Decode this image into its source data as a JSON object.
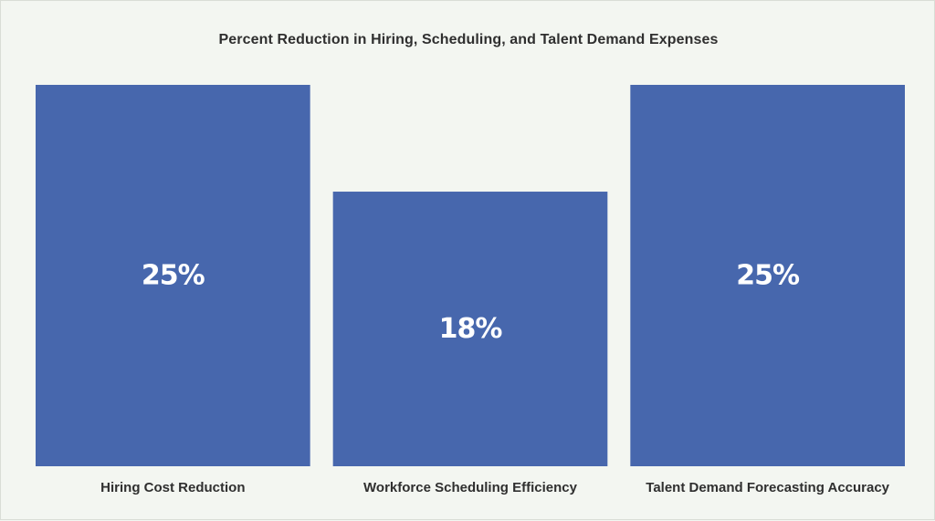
{
  "chart_data": {
    "type": "bar",
    "title": "Percent Reduction in Hiring, Scheduling, and Talent Demand Expenses",
    "categories": [
      "Hiring Cost Reduction",
      "Workforce Scheduling Efficiency",
      "Talent Demand Forecasting Accuracy"
    ],
    "values": [
      25,
      18,
      25
    ],
    "data_labels": [
      "25%",
      "18%",
      "25%"
    ],
    "unit": "%",
    "xlabel": "",
    "ylabel": "",
    "ylim": [
      0,
      25
    ],
    "grid": false,
    "legend": "none",
    "bar_color": "#4767ad"
  },
  "colors": {
    "background": "#f3f6f1",
    "text": "#2f2f2f",
    "bar_label": "#ffffff"
  }
}
